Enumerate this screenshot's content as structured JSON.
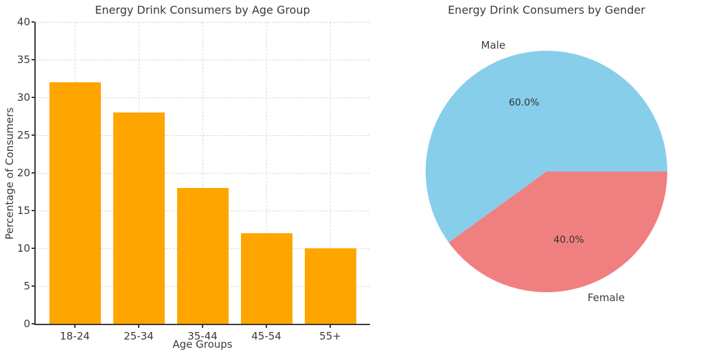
{
  "figure": {
    "background_color": "#ffffff",
    "text_color": "#3a3a3a",
    "grid_color": "#d9d9d9",
    "spine_color": "#3a3a3a"
  },
  "chart_data": [
    {
      "type": "bar",
      "title": "Energy Drink Consumers by Age Group",
      "xlabel": "Age Groups",
      "ylabel": "Percentage of Consumers",
      "categories": [
        "18-24",
        "25-34",
        "35-44",
        "45-54",
        "55+"
      ],
      "values": [
        32,
        28,
        18,
        12,
        10
      ],
      "ylim": [
        0,
        40
      ],
      "ytick_step": 5,
      "yticks": [
        "0",
        "5",
        "10",
        "15",
        "20",
        "25",
        "30",
        "35",
        "40"
      ],
      "bar_color": "#FFA500",
      "grid": true,
      "grid_style": "dashed",
      "legend": "none"
    },
    {
      "type": "pie",
      "title": "Energy Drink Consumers by Gender",
      "labels": [
        "Male",
        "Female"
      ],
      "values": [
        60,
        40
      ],
      "percent_labels": [
        "60.0%",
        "40.0%"
      ],
      "colors": [
        "#87CEEB",
        "#F08080"
      ],
      "start_angle_deg": 0,
      "direction": "counterclockwise",
      "label_distance": 1.1,
      "pct_distance": 0.6,
      "legend": "none"
    }
  ]
}
